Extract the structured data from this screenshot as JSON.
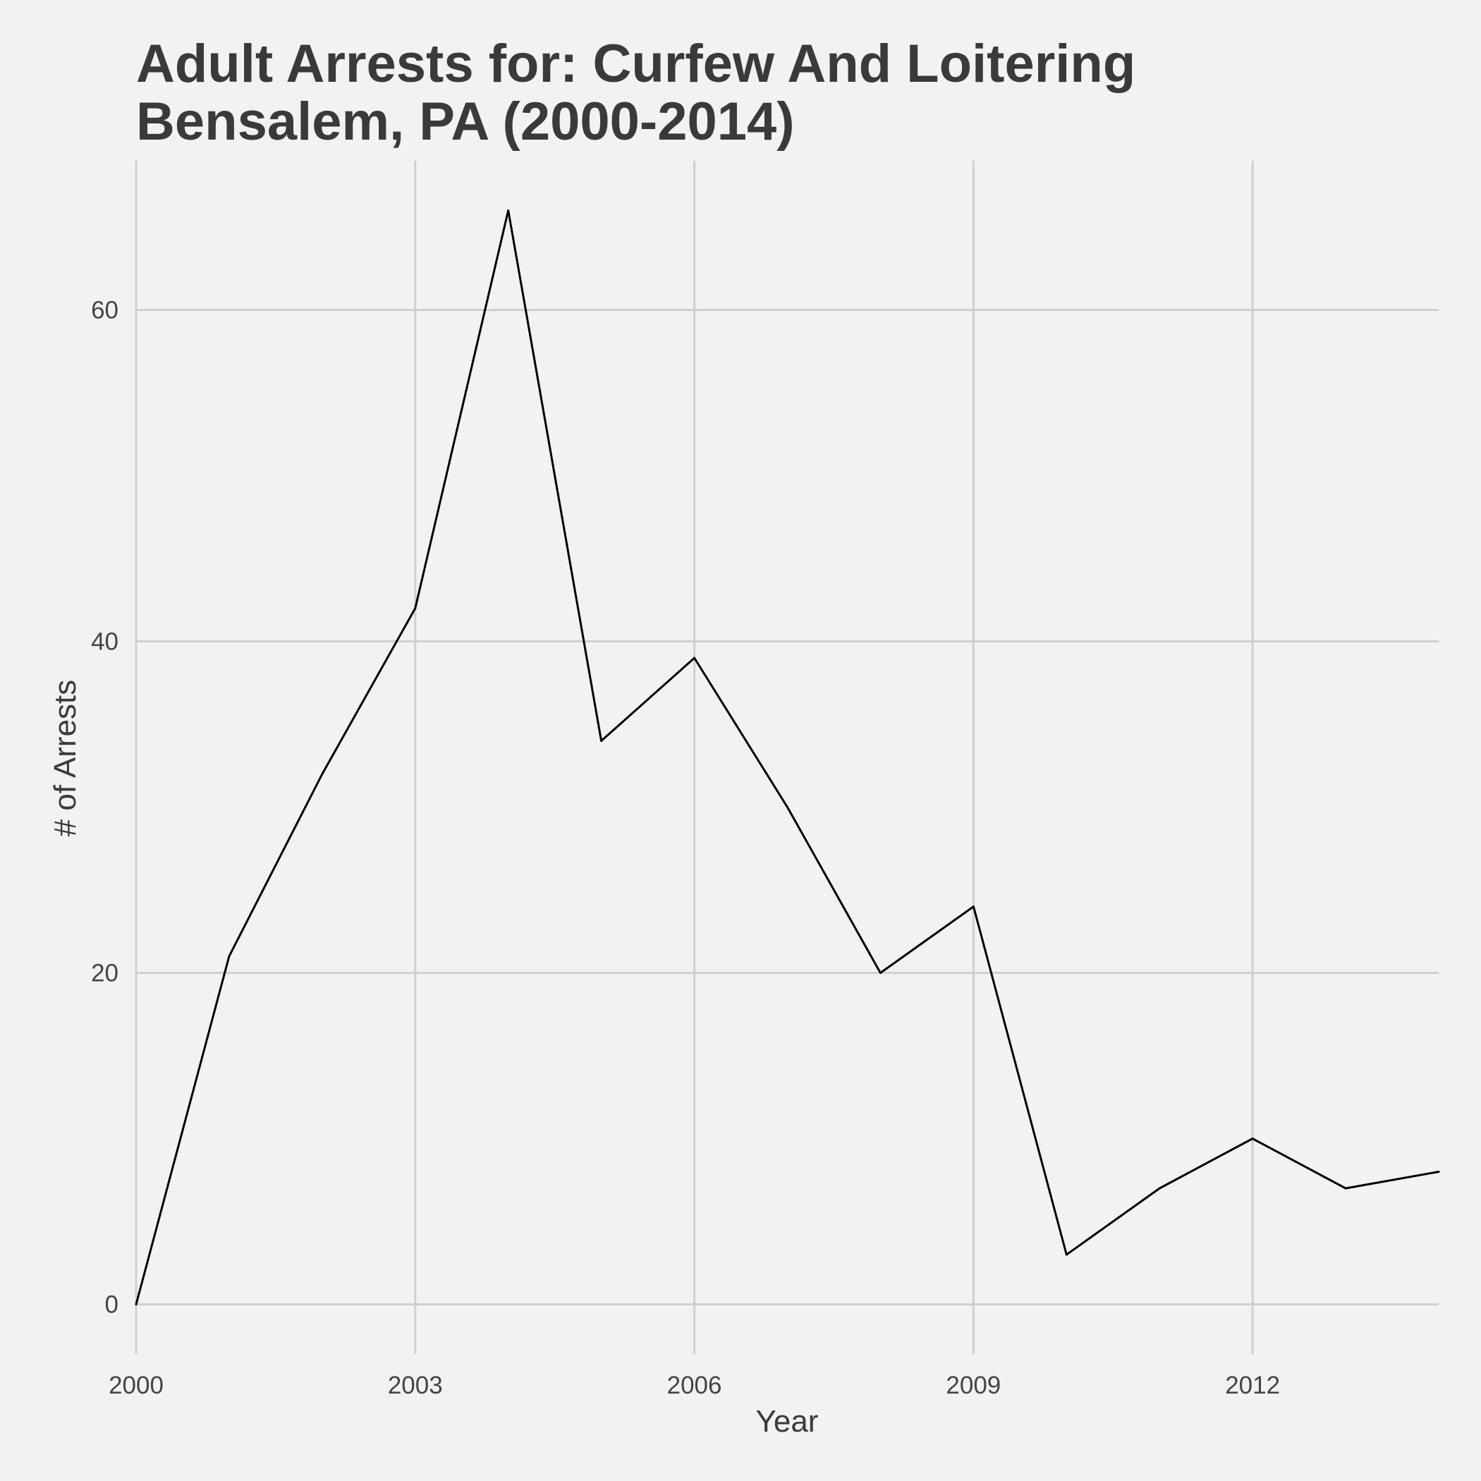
{
  "chart_data": {
    "type": "line",
    "title_line1": "Adult Arrests for: Curfew And Loitering",
    "title_line2": "Bensalem, PA (2000-2014)",
    "xlabel": "Year",
    "ylabel": "# of Arrests",
    "xlim": [
      2000,
      2014
    ],
    "ylim": [
      -3,
      69
    ],
    "x_ticks": [
      2000,
      2003,
      2006,
      2009,
      2012
    ],
    "y_ticks": [
      0,
      20,
      40,
      60
    ],
    "grid": true,
    "legend": "none",
    "colors": {
      "background": "#f2f2f2",
      "grid": "#cfcfcf",
      "line": "#000000",
      "text": "#3a3a3a"
    },
    "series": [
      {
        "x": [
          2000,
          2001,
          2002,
          2003,
          2004,
          2005,
          2006,
          2007,
          2008,
          2009,
          2010,
          2011,
          2012,
          2013,
          2014
        ],
        "values": [
          0,
          21,
          32,
          42,
          66,
          34,
          39,
          30,
          20,
          24,
          3,
          7,
          10,
          7,
          8
        ]
      }
    ]
  }
}
